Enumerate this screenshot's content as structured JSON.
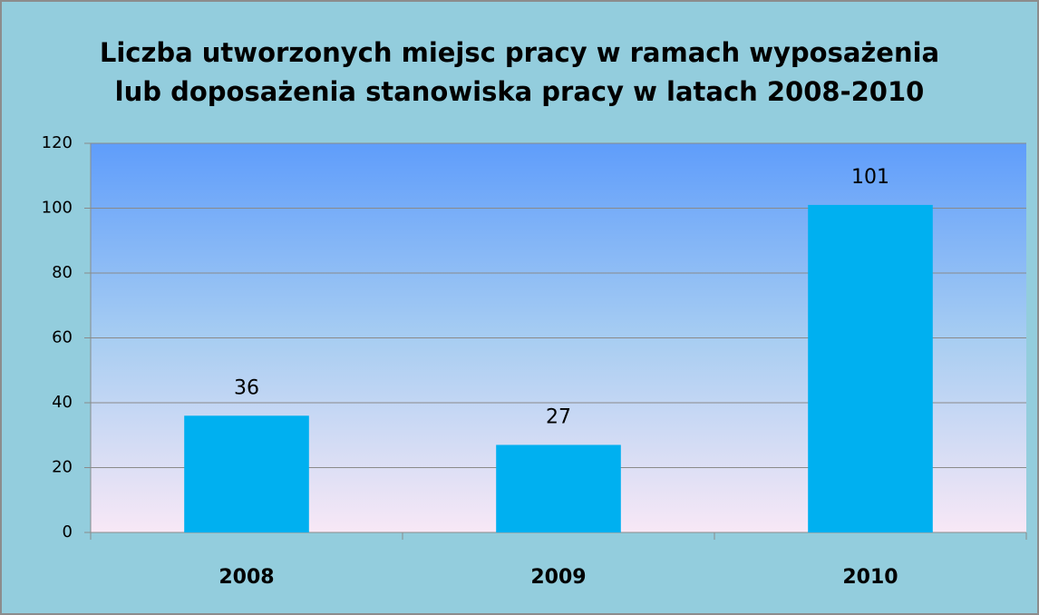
{
  "chart_data": {
    "type": "bar",
    "title": [
      "Liczba utworzonych miejsc pracy w ramach  wyposażenia",
      "lub doposażenia stanowiska pracy  w latach  2008-2010"
    ],
    "categories": [
      "2008",
      "2009",
      "2010"
    ],
    "values": [
      36,
      27,
      101
    ],
    "color": "#00b0f0",
    "ylim": [
      0,
      120
    ],
    "yticks": [
      0,
      20,
      40,
      60,
      80,
      100,
      120
    ],
    "grid": true
  }
}
